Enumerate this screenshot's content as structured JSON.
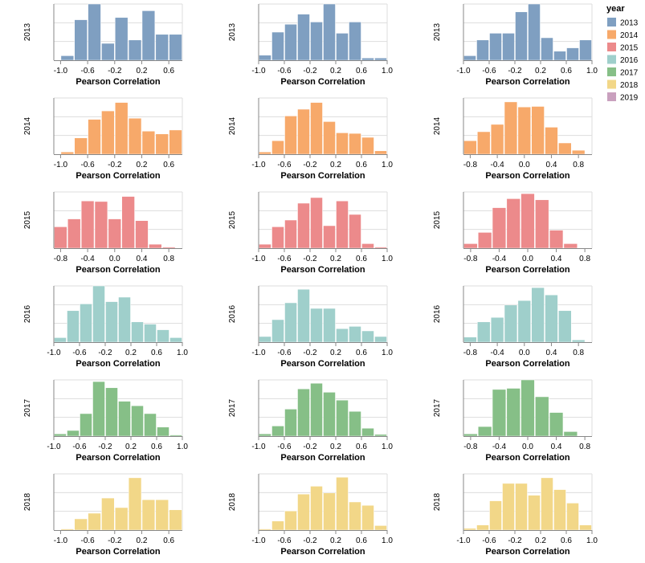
{
  "chart_data": {
    "type": "bar",
    "layout": "faceted histogram grid",
    "xlabel": "Pearson Correlation",
    "ylabel": "",
    "row_field": "year",
    "y_ticks_visible": false,
    "grid": true,
    "legend": {
      "title": "year",
      "placement": "top-right",
      "entries": [
        {
          "label": "2013",
          "color": "#7f9fc1"
        },
        {
          "label": "2014",
          "color": "#f7a96a"
        },
        {
          "label": "2015",
          "color": "#ec8a8b"
        },
        {
          "label": "2016",
          "color": "#9fcfcb"
        },
        {
          "label": "2017",
          "color": "#86bf87"
        },
        {
          "label": "2018",
          "color": "#f2d788"
        },
        {
          "label": "2019",
          "color": "#c9a0be"
        }
      ]
    },
    "rows": [
      {
        "year": "2013",
        "panels": [
          {
            "xlim": [
              -1.1,
              0.8
            ],
            "ticks": [
              "-1.0",
              "-0.6",
              "-0.2",
              "0.2",
              "0.6"
            ],
            "tick_values": [
              -1.0,
              -0.6,
              -0.2,
              0.2,
              0.6
            ],
            "bin_start": -1.0,
            "bin_width": 0.2,
            "values": [
              0.08,
              0.72,
              1.0,
              0.3,
              0.76,
              0.36,
              0.88,
              0.46,
              0.46
            ]
          },
          {
            "xlim": [
              -1.0,
              1.0
            ],
            "ticks": [
              "-1.0",
              "-0.6",
              "-0.2",
              "0.2",
              "0.6",
              "1.0"
            ],
            "tick_values": [
              -1.0,
              -0.6,
              -0.2,
              0.2,
              0.6,
              1.0
            ],
            "bin_start": -1.0,
            "bin_width": 0.2,
            "values": [
              0.09,
              0.5,
              0.64,
              0.82,
              0.68,
              1.0,
              0.48,
              0.68,
              0.04,
              0.04
            ]
          },
          {
            "xlim": [
              -1.0,
              1.0
            ],
            "ticks": [
              "-1.0",
              "-0.6",
              "-0.2",
              "0.2",
              "0.6",
              "1.0"
            ],
            "tick_values": [
              -1.0,
              -0.6,
              -0.2,
              0.2,
              0.6,
              1.0
            ],
            "bin_start": -1.0,
            "bin_width": 0.2,
            "values": [
              0.08,
              0.36,
              0.48,
              0.48,
              0.86,
              1.0,
              0.4,
              0.16,
              0.22,
              0.36
            ]
          }
        ]
      },
      {
        "year": "2014",
        "panels": [
          {
            "xlim": [
              -1.1,
              0.8
            ],
            "ticks": [
              "-1.0",
              "-0.6",
              "-0.2",
              "0.2",
              "0.6"
            ],
            "tick_values": [
              -1.0,
              -0.6,
              -0.2,
              0.2,
              0.6
            ],
            "bin_start": -1.0,
            "bin_width": 0.2,
            "values": [
              0.04,
              0.29,
              0.62,
              0.77,
              0.92,
              0.64,
              0.41,
              0.36,
              0.43
            ]
          },
          {
            "xlim": [
              -1.0,
              1.0
            ],
            "ticks": [
              "-1.0",
              "-0.6",
              "-0.2",
              "0.2",
              "0.6",
              "1.0"
            ],
            "tick_values": [
              -1.0,
              -0.6,
              -0.2,
              0.2,
              0.6,
              1.0
            ],
            "bin_start": -1.0,
            "bin_width": 0.2,
            "values": [
              0.04,
              0.24,
              0.68,
              0.8,
              0.92,
              0.58,
              0.38,
              0.37,
              0.3,
              0.06
            ]
          },
          {
            "xlim": [
              -0.9,
              1.0
            ],
            "ticks": [
              "-0.8",
              "-0.4",
              "0.0",
              "0.4",
              "0.8"
            ],
            "tick_values": [
              -0.8,
              -0.4,
              0.0,
              0.4,
              0.8
            ],
            "bin_start": -0.9,
            "bin_width": 0.2,
            "values": [
              0.24,
              0.4,
              0.53,
              0.93,
              0.84,
              0.85,
              0.48,
              0.2,
              0.07
            ]
          }
        ]
      },
      {
        "year": "2015",
        "panels": [
          {
            "xlim": [
              -0.9,
              1.0
            ],
            "ticks": [
              "-0.8",
              "-0.4",
              "0.0",
              "0.4",
              "0.8"
            ],
            "tick_values": [
              -0.8,
              -0.4,
              0.0,
              0.4,
              0.8
            ],
            "bin_start": -0.9,
            "bin_width": 0.2,
            "values": [
              0.38,
              0.52,
              0.84,
              0.83,
              0.52,
              0.92,
              0.49,
              0.07,
              0.02
            ]
          },
          {
            "xlim": [
              -1.0,
              1.0
            ],
            "ticks": [
              "-1.0",
              "-0.6",
              "-0.2",
              "0.2",
              "0.6",
              "1.0"
            ],
            "tick_values": [
              -1.0,
              -0.6,
              -0.2,
              0.2,
              0.6,
              1.0
            ],
            "bin_start": -1.0,
            "bin_width": 0.2,
            "values": [
              0.07,
              0.38,
              0.5,
              0.8,
              0.9,
              0.4,
              0.84,
              0.6,
              0.08,
              0.02
            ]
          },
          {
            "xlim": [
              -0.9,
              0.9
            ],
            "ticks": [
              "-0.8",
              "-0.4",
              "0.0",
              "0.4",
              "0.8"
            ],
            "tick_values": [
              -0.8,
              -0.4,
              0.0,
              0.4,
              0.8
            ],
            "bin_start": -0.9,
            "bin_width": 0.2,
            "values": [
              0.08,
              0.28,
              0.72,
              0.88,
              0.97,
              0.86,
              0.32,
              0.08
            ]
          }
        ]
      },
      {
        "year": "2016",
        "panels": [
          {
            "xlim": [
              -1.0,
              1.0
            ],
            "ticks": [
              "-1.0",
              "-0.6",
              "-0.2",
              "0.2",
              "0.6",
              "1.0"
            ],
            "tick_values": [
              -1.0,
              -0.6,
              -0.2,
              0.2,
              0.6,
              1.0
            ],
            "bin_start": -1.0,
            "bin_width": 0.2,
            "values": [
              0.08,
              0.56,
              0.68,
              1.0,
              0.72,
              0.8,
              0.36,
              0.32,
              0.22,
              0.08
            ]
          },
          {
            "xlim": [
              -1.0,
              1.0
            ],
            "ticks": [
              "-1.0",
              "-0.6",
              "-0.2",
              "0.2",
              "0.6",
              "1.0"
            ],
            "tick_values": [
              -1.0,
              -0.6,
              -0.2,
              0.2,
              0.6,
              1.0
            ],
            "bin_start": -1.0,
            "bin_width": 0.2,
            "values": [
              0.1,
              0.4,
              0.7,
              0.94,
              0.6,
              0.6,
              0.24,
              0.28,
              0.2,
              0.1
            ]
          },
          {
            "xlim": [
              -0.9,
              1.0
            ],
            "ticks": [
              "-0.8",
              "-0.4",
              "0.0",
              "0.4",
              "0.8"
            ],
            "tick_values": [
              -0.8,
              -0.4,
              0.0,
              0.4,
              0.8
            ],
            "bin_start": -0.9,
            "bin_width": 0.2,
            "values": [
              0.09,
              0.36,
              0.44,
              0.66,
              0.74,
              0.97,
              0.84,
              0.56,
              0.04
            ]
          }
        ]
      },
      {
        "year": "2017",
        "panels": [
          {
            "xlim": [
              -1.0,
              1.0
            ],
            "ticks": [
              "-1.0",
              "-0.6",
              "-0.2",
              "0.2",
              "0.6",
              "1.0"
            ],
            "tick_values": [
              -1.0,
              -0.6,
              -0.2,
              0.2,
              0.6,
              1.0
            ],
            "bin_start": -1.0,
            "bin_width": 0.2,
            "values": [
              0.04,
              0.1,
              0.4,
              0.97,
              0.86,
              0.62,
              0.54,
              0.4,
              0.16,
              0.02
            ]
          },
          {
            "xlim": [
              -1.0,
              1.0
            ],
            "ticks": [
              "-1.0",
              "-0.6",
              "-0.2",
              "0.2",
              "0.6",
              "1.0"
            ],
            "tick_values": [
              -1.0,
              -0.6,
              -0.2,
              0.2,
              0.6,
              1.0
            ],
            "bin_start": -1.0,
            "bin_width": 0.2,
            "values": [
              0.04,
              0.18,
              0.48,
              0.84,
              0.94,
              0.78,
              0.64,
              0.44,
              0.14,
              0.03
            ]
          },
          {
            "xlim": [
              -0.9,
              0.9
            ],
            "ticks": [
              "-0.8",
              "-0.4",
              "0.0",
              "0.4",
              "0.8"
            ],
            "tick_values": [
              -0.8,
              -0.4,
              0.0,
              0.4,
              0.8
            ],
            "bin_start": -0.9,
            "bin_width": 0.2,
            "values": [
              0.04,
              0.17,
              0.83,
              0.85,
              1.0,
              0.7,
              0.42,
              0.08
            ]
          }
        ]
      },
      {
        "year": "2018",
        "panels": [
          {
            "xlim": [
              -1.1,
              0.8
            ],
            "ticks": [
              "-1.0",
              "-0.6",
              "-0.2",
              "0.2",
              "0.6"
            ],
            "tick_values": [
              -1.0,
              -0.6,
              -0.2,
              0.2,
              0.6
            ],
            "bin_start": -1.0,
            "bin_width": 0.2,
            "values": [
              0.02,
              0.2,
              0.3,
              0.57,
              0.4,
              0.93,
              0.54,
              0.54,
              0.36
            ]
          },
          {
            "xlim": [
              -1.0,
              1.0
            ],
            "ticks": [
              "-1.0",
              "-0.6",
              "-0.2",
              "0.2",
              "0.6",
              "1.0"
            ],
            "tick_values": [
              -1.0,
              -0.6,
              -0.2,
              0.2,
              0.6,
              1.0
            ],
            "bin_start": -1.0,
            "bin_width": 0.2,
            "values": [
              0.02,
              0.16,
              0.34,
              0.64,
              0.78,
              0.66,
              0.94,
              0.5,
              0.44,
              0.08
            ]
          },
          {
            "xlim": [
              -1.0,
              1.0
            ],
            "ticks": [
              "-1.0",
              "-0.6",
              "-0.2",
              "0.2",
              "0.6",
              "1.0"
            ],
            "tick_values": [
              -1.0,
              -0.6,
              -0.2,
              0.2,
              0.6,
              1.0
            ],
            "bin_start": -1.0,
            "bin_width": 0.2,
            "values": [
              0.03,
              0.09,
              0.52,
              0.83,
              0.83,
              0.62,
              0.93,
              0.72,
              0.48,
              0.09
            ]
          }
        ]
      }
    ]
  }
}
